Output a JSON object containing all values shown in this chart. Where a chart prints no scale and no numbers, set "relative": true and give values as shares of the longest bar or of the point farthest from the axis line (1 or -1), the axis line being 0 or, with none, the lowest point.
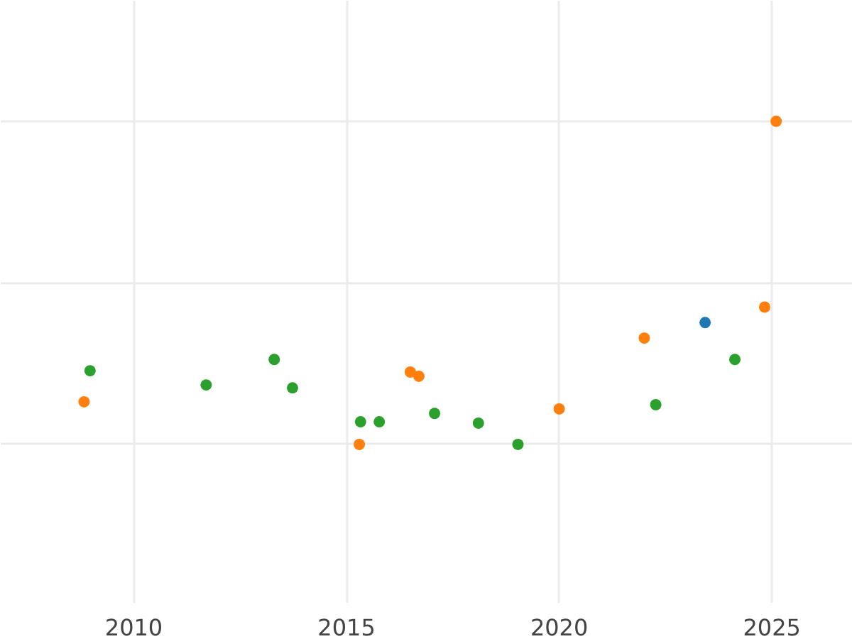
{
  "chart_data": {
    "type": "scatter",
    "relative": true,
    "xlim": [
      2006.87,
      2026.9
    ],
    "xticks": [
      2010,
      2015,
      2020,
      2025
    ],
    "grid": true,
    "marker": "circle",
    "tick_labels": "x",
    "series": [
      {
        "color": "#2ca02c",
        "x": [
          2008.97,
          2011.7,
          2013.3,
          2013.73,
          2015.33,
          2015.77,
          2017.07,
          2018.1,
          2019.03,
          2022.27,
          2024.13
        ],
        "values": [
          0.228,
          0.184,
          0.263,
          0.175,
          0.07,
          0.07,
          0.096,
          0.066,
          0,
          0.123,
          0.263
        ]
      },
      {
        "color": "#ff7f0e",
        "x": [
          2008.83,
          2015.3,
          2016.5,
          2016.7,
          2020.0,
          2022.0,
          2024.83,
          2025.1
        ],
        "values": [
          0.132,
          0,
          0.224,
          0.211,
          0.11,
          0.329,
          0.425,
          1
        ]
      },
      {
        "color": "#1f77b4",
        "x": [
          2023.43
        ],
        "values": [
          0.377
        ]
      }
    ]
  }
}
